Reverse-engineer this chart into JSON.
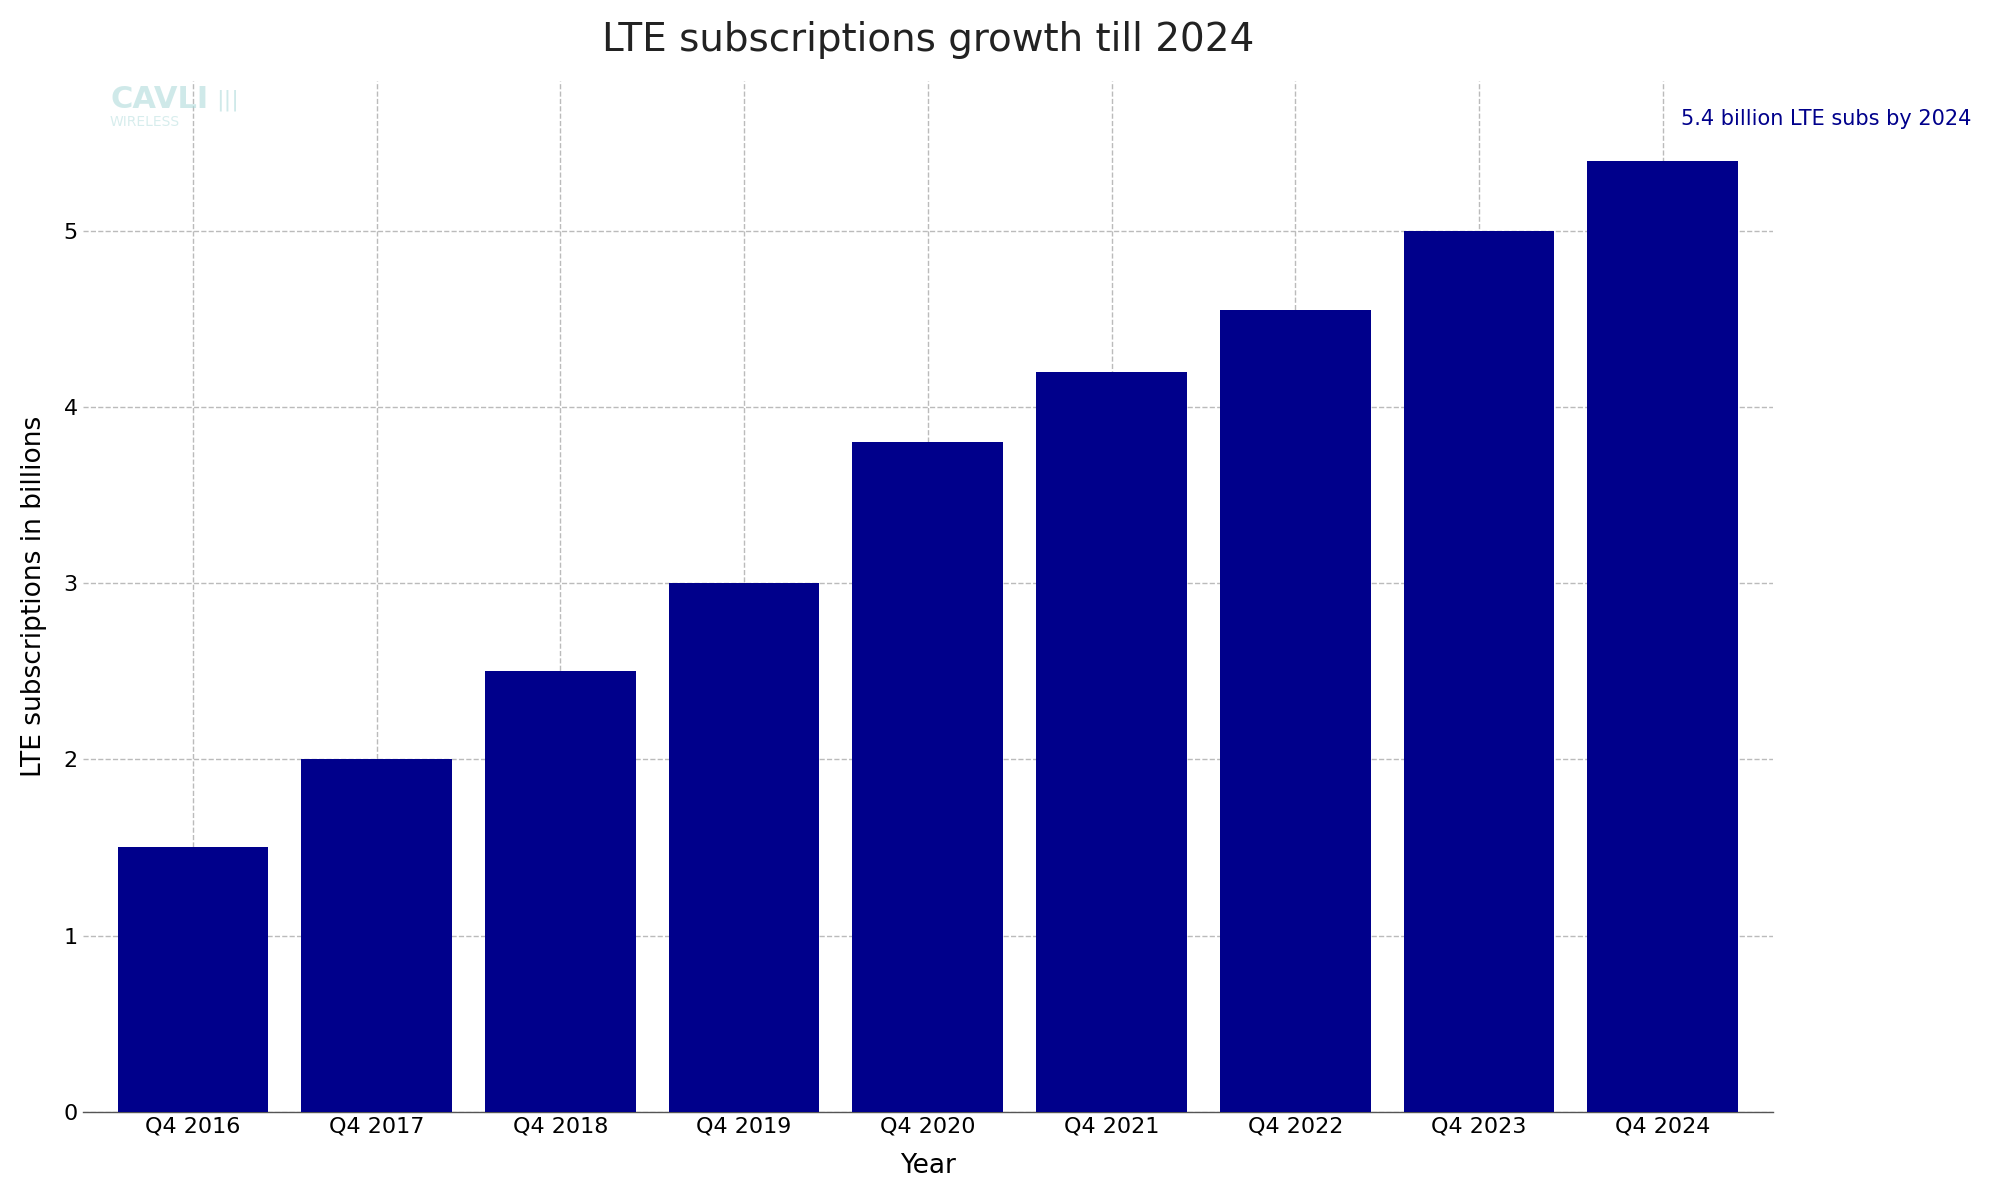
{
  "title": "LTE subscriptions growth till 2024",
  "xlabel": "Year",
  "ylabel": "LTE subscriptions in billions",
  "categories": [
    "Q4 2016",
    "Q4 2017",
    "Q4 2018",
    "Q4 2019",
    "Q4 2020",
    "Q4 2021",
    "Q4 2022",
    "Q4 2023",
    "Q4 2024"
  ],
  "values": [
    1.5,
    2.0,
    2.5,
    3.0,
    3.8,
    4.2,
    4.55,
    5.0,
    5.4
  ],
  "bar_color": "#00008B",
  "annotation_text": "5.4 billion LTE subs by 2024",
  "annotation_color": "#00008B",
  "ylim": [
    0,
    5.85
  ],
  "yticks": [
    0,
    1.0,
    2.0,
    3.0,
    4.0,
    5.0
  ],
  "background_color": "#ffffff",
  "grid_color": "#bbbbbb",
  "title_fontsize": 28,
  "axis_label_fontsize": 19,
  "tick_fontsize": 16,
  "annotation_fontsize": 15,
  "bar_width": 0.82
}
